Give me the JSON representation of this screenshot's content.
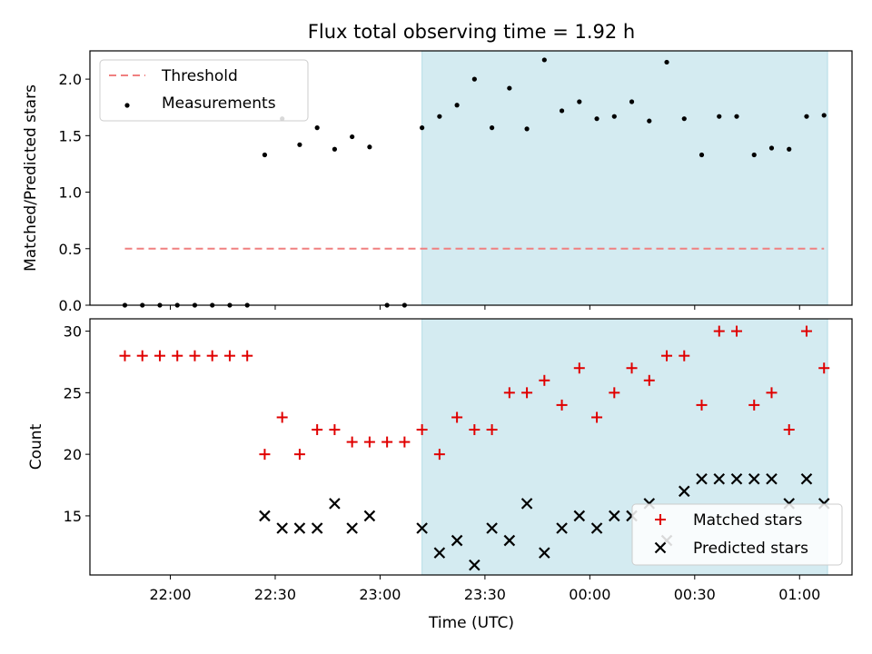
{
  "figure": {
    "title": "Flux total observing time = 1.92 h",
    "xlabel": "Time (UTC)"
  },
  "colors": {
    "threshold": "#f08080",
    "measurements": "#000000",
    "matched": "#e00000",
    "predicted": "#000000",
    "shade": "#d4ebf1",
    "shade_edge": "#b5dce6"
  },
  "chart_data": [
    {
      "type": "scatter",
      "ylabel": "Matched/Predicted stars",
      "ylim": [
        0,
        2.25
      ],
      "yticks": [
        0.0,
        0.5,
        1.0,
        1.5,
        2.0
      ],
      "ytick_labels": [
        "0.0",
        "0.5",
        "1.0",
        "1.5",
        "2.0"
      ],
      "xlim": [
        "21:37",
        "01:15"
      ],
      "shaded_x_range": [
        "23:12",
        "01:08"
      ],
      "legend": "upper-left",
      "threshold": {
        "name": "Threshold",
        "value": 0.5,
        "x_range": [
          "21:47",
          "01:07"
        ]
      },
      "series": [
        {
          "name": "Measurements",
          "x": [
            "21:47",
            "21:52",
            "21:57",
            "22:02",
            "22:07",
            "22:12",
            "22:17",
            "22:22",
            "22:27",
            "22:32",
            "22:37",
            "22:42",
            "22:47",
            "22:52",
            "22:57",
            "23:02",
            "23:07",
            "23:12",
            "23:17",
            "23:22",
            "23:27",
            "23:32",
            "23:37",
            "23:42",
            "23:47",
            "23:52",
            "23:57",
            "00:02",
            "00:07",
            "00:12",
            "00:17",
            "00:22",
            "00:27",
            "00:32",
            "00:37",
            "00:42",
            "00:47",
            "00:52",
            "00:57",
            "01:02",
            "01:07"
          ],
          "y": [
            0,
            0,
            0,
            0,
            0,
            0,
            0,
            0,
            1.33,
            1.65,
            1.42,
            1.57,
            1.38,
            1.49,
            1.4,
            0,
            0,
            1.57,
            1.67,
            1.77,
            2.0,
            1.57,
            1.92,
            1.56,
            2.17,
            1.72,
            1.8,
            1.65,
            1.67,
            1.8,
            1.63,
            2.15,
            1.65,
            1.33,
            1.67,
            1.67,
            1.33,
            1.39,
            1.38,
            1.67,
            1.68
          ]
        }
      ]
    },
    {
      "type": "scatter",
      "ylabel": "Count",
      "ylim": [
        10.2,
        31
      ],
      "yticks": [
        15,
        20,
        25,
        30
      ],
      "ytick_labels": [
        "15",
        "20",
        "25",
        "30"
      ],
      "xlim": [
        "21:37",
        "01:15"
      ],
      "shaded_x_range": [
        "23:12",
        "01:08"
      ],
      "xticks": [
        "22:00",
        "22:30",
        "23:00",
        "23:30",
        "00:00",
        "00:30",
        "01:00"
      ],
      "xtick_labels": [
        "22:00",
        "22:30",
        "23:00",
        "23:30",
        "00:00",
        "00:30",
        "01:00"
      ],
      "legend": "lower-right",
      "x": [
        "21:47",
        "21:52",
        "21:57",
        "22:02",
        "22:07",
        "22:12",
        "22:17",
        "22:22",
        "22:27",
        "22:32",
        "22:37",
        "22:42",
        "22:47",
        "22:52",
        "22:57",
        "23:02",
        "23:07",
        "23:12",
        "23:17",
        "23:22",
        "23:27",
        "23:32",
        "23:37",
        "23:42",
        "23:47",
        "23:52",
        "23:57",
        "00:02",
        "00:07",
        "00:12",
        "00:17",
        "00:22",
        "00:27",
        "00:32",
        "00:37",
        "00:42",
        "00:47",
        "00:52",
        "00:57",
        "01:02",
        "01:07"
      ],
      "series": [
        {
          "name": "Matched stars",
          "marker": "plus",
          "values": [
            28,
            28,
            28,
            28,
            28,
            28,
            28,
            28,
            20,
            23,
            20,
            22,
            22,
            21,
            21,
            21,
            21,
            22,
            20,
            23,
            22,
            22,
            25,
            25,
            26,
            24,
            27,
            23,
            25,
            27,
            26,
            28,
            28,
            24,
            30,
            30,
            24,
            25,
            22,
            30,
            27
          ]
        },
        {
          "name": "Predicted stars",
          "marker": "x",
          "values": [
            null,
            null,
            null,
            null,
            null,
            null,
            null,
            null,
            15,
            14,
            14,
            14,
            16,
            14,
            15,
            null,
            null,
            14,
            12,
            13,
            11,
            14,
            13,
            16,
            12,
            14,
            15,
            14,
            15,
            15,
            16,
            13,
            17,
            18,
            18,
            18,
            18,
            18,
            16,
            18,
            16
          ]
        }
      ]
    }
  ]
}
